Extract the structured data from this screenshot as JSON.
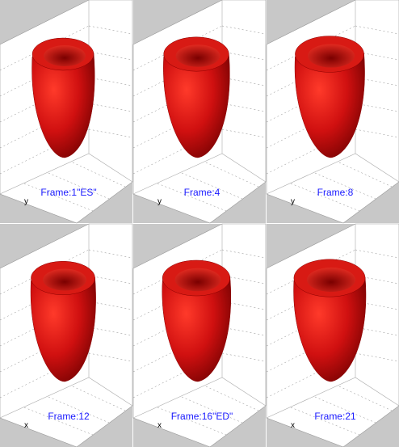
{
  "panels": [
    {
      "label": "Frame:1\"ES\"",
      "axis_label": "y"
    },
    {
      "label": "Frame:4",
      "axis_label": "y"
    },
    {
      "label": "Frame:8",
      "axis_label": "y"
    },
    {
      "label": "Frame:12",
      "axis_label": "x"
    },
    {
      "label": "Frame:16\"ED\"",
      "axis_label": "x"
    },
    {
      "label": "Frame:21",
      "axis_label": "x"
    }
  ]
}
